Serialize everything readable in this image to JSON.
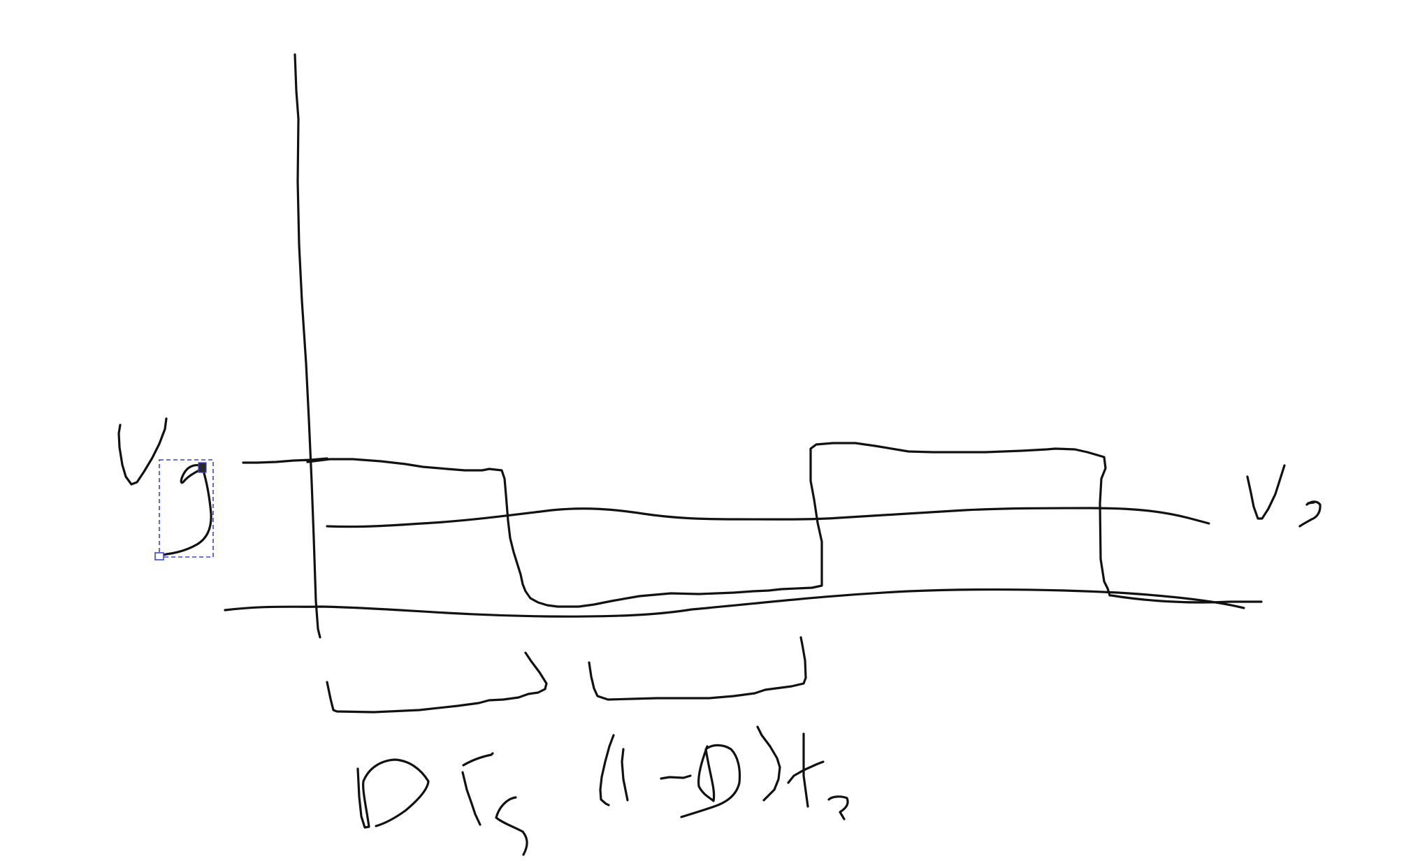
{
  "diagram": {
    "labels": {
      "input_voltage": "Vg",
      "output_voltage": "Vo",
      "on_interval": "DTs",
      "off_interval": "(1-D)Ts"
    },
    "ink_color": "#111111",
    "selection_color": "#3b43d6",
    "selected_stroke": "handwritten-g-of-Vg"
  }
}
